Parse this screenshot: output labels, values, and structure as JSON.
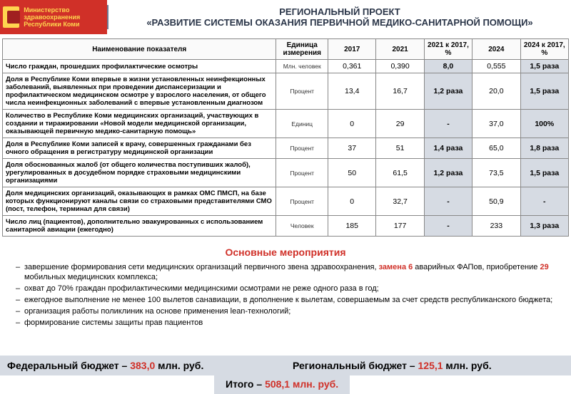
{
  "header": {
    "ministry_l1": "Министерство здравоохранения",
    "ministry_l2": "Республики Коми",
    "title_l1": "РЕГИОНАЛЬНЫЙ ПРОЕКТ",
    "title_l2": "«РАЗВИТИЕ СИСТЕМЫ ОКАЗАНИЯ ПЕРВИЧНОЙ МЕДИКО-САНИТАРНОЙ ПОМОЩИ»"
  },
  "table": {
    "columns": [
      "Наименование показателя",
      "Единица измерения",
      "2017",
      "2021",
      "2021 к 2017, %",
      "2024",
      "2024 к 2017, %"
    ],
    "rows": [
      {
        "name": "Число граждан, прошедших профилактические осмотры",
        "unit": "Млн. человек",
        "v2017": "0,361",
        "v2021": "0,390",
        "r21": "8,0",
        "v2024": "0,555",
        "r24": "1,5 раза"
      },
      {
        "name": "Доля в Республике Коми впервые в жизни установленных неинфекционных заболеваний, выявленных при проведении диспансеризации и профилактическом медицинском осмотре у взрослого населения, от общего числа неинфекционных заболеваний с впервые установленным диагнозом",
        "unit": "Процент",
        "v2017": "13,4",
        "v2021": "16,7",
        "r21": "1,2 раза",
        "v2024": "20,0",
        "r24": "1,5 раза"
      },
      {
        "name": "Количество в Республике Коми медицинских организаций, участвующих в создании и тиражировании «Новой модели медицинской организации, оказывающей первичную медико-санитарную помощь»",
        "unit": "Единиц",
        "v2017": "0",
        "v2021": "29",
        "r21": "-",
        "v2024": "37,0",
        "r24": "100%"
      },
      {
        "name": "Доля в Республике Коми записей к врачу, совершенных гражданами без очного обращения в регистратуру медицинской организации",
        "unit": "Процент",
        "v2017": "37",
        "v2021": "51",
        "r21": "1,4 раза",
        "v2024": "65,0",
        "r24": "1,8 раза"
      },
      {
        "name": "Доля обоснованных жалоб (от общего количества поступивших жалоб), урегулированных в досудебном порядке страховыми медицинскими организациями",
        "unit": "Процент",
        "v2017": "50",
        "v2021": "61,5",
        "r21": "1,2 раза",
        "v2024": "73,5",
        "r24": "1,5 раза"
      },
      {
        "name": "Доля медицинских организаций, оказывающих в рамках ОМС ПМСП, на базе которых функционируют каналы связи со страховыми представителями СМО (пост, телефон, терминал для связи)",
        "unit": "Процент",
        "v2017": "0",
        "v2021": "32,7",
        "r21": "-",
        "v2024": "50,9",
        "r24": "-"
      },
      {
        "name": "Число лиц (пациентов), дополнительно эвакуированных с использованием санитарной авиации (ежегодно)",
        "unit": "Человек",
        "v2017": "185",
        "v2021": "177",
        "r21": "-",
        "v2024": "233",
        "r24": "1,3 раза"
      }
    ]
  },
  "events": {
    "title": "Основные мероприятия",
    "items": [
      {
        "pre": "завершение формирования сети медицинских организаций первичного звена здравоохранения, ",
        "a1": "замена 6",
        "mid": " аварийных ФАПов, приобретение ",
        "a2": "29",
        "post": " мобильных медицинских комплекса;"
      },
      {
        "pre": "охват до 70% граждан профилактическими медицинскими осмотрами не реже одного раза в год;"
      },
      {
        "pre": "ежегодное выполнение не менее 100 вылетов санавиации, в дополнение к вылетам, совершаемым за счет средств республиканского бюджета;"
      },
      {
        "pre": "организация работы поликлиник на основе применения lean-технологий;"
      },
      {
        "pre": "формирование системы защиты прав пациентов"
      }
    ]
  },
  "budget": {
    "fed_label": "Федеральный бюджет – ",
    "fed_val": "383,0",
    "fed_unit": " млн. руб.",
    "reg_label": "Региональный бюджет – ",
    "reg_val": "125,1",
    "reg_unit": " млн. руб.",
    "total_label": "Итого – ",
    "total_val": "508,1 млн. руб."
  },
  "colors": {
    "red": "#d03028",
    "hl": "#d6dbe3"
  }
}
